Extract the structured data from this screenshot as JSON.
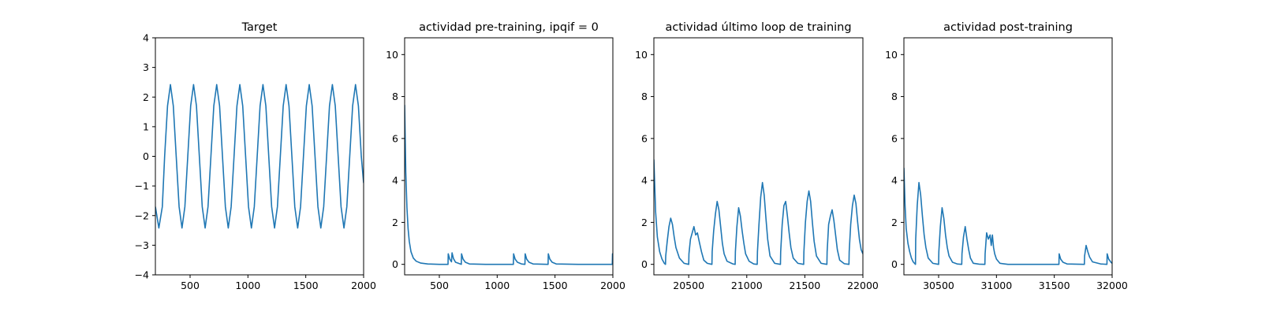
{
  "colors": {
    "series": "#1f77b4",
    "axes": "#000000",
    "background": "#ffffff"
  },
  "chart_data": [
    {
      "type": "line",
      "title": "Target",
      "xlabel": "",
      "ylabel": "",
      "xlim": [
        200,
        2000
      ],
      "ylim": [
        -4,
        4
      ],
      "xticks": [
        500,
        1000,
        1500,
        2000
      ],
      "yticks": [
        -4,
        -3,
        -2,
        -1,
        0,
        1,
        2,
        3,
        4
      ],
      "grid": false,
      "series": [
        {
          "x": [
            200,
            230,
            260,
            280,
            305,
            330,
            355,
            380,
            405,
            430,
            455,
            480,
            505,
            530,
            555,
            580,
            605,
            630,
            655,
            680,
            705,
            730,
            755,
            780,
            805,
            830,
            855,
            880,
            905,
            930,
            955,
            980,
            1005,
            1030,
            1055,
            1080,
            1105,
            1130,
            1155,
            1180,
            1205,
            1230,
            1255,
            1280,
            1305,
            1330,
            1355,
            1380,
            1405,
            1430,
            1455,
            1480,
            1505,
            1530,
            1555,
            1580,
            1605,
            1630,
            1655,
            1680,
            1705,
            1730,
            1755,
            1780,
            1805,
            1830,
            1855,
            1880,
            1905,
            1930,
            1955,
            1980,
            2000
          ],
          "y": [
            -1.7,
            -2.42,
            -1.7,
            0.0,
            1.7,
            2.42,
            1.7,
            0.0,
            -1.7,
            -2.42,
            -1.7,
            0.0,
            1.7,
            2.42,
            1.7,
            0.0,
            -1.7,
            -2.42,
            -1.7,
            0.0,
            1.7,
            2.42,
            1.7,
            0.0,
            -1.7,
            -2.42,
            -1.7,
            0.0,
            1.7,
            2.42,
            1.7,
            0.0,
            -1.7,
            -2.42,
            -1.7,
            0.0,
            1.7,
            2.42,
            1.7,
            0.0,
            -1.7,
            -2.42,
            -1.7,
            0.0,
            1.7,
            2.42,
            1.7,
            0.0,
            -1.7,
            -2.42,
            -1.7,
            0.0,
            1.7,
            2.42,
            1.7,
            0.0,
            -1.7,
            -2.42,
            -1.7,
            0.0,
            1.7,
            2.42,
            1.7,
            0.0,
            -1.7,
            -2.42,
            -1.7,
            0.0,
            1.7,
            2.42,
            1.7,
            0.0,
            -0.9
          ]
        }
      ]
    },
    {
      "type": "line",
      "title": "actividad pre-training, ipqif = 0",
      "xlabel": "",
      "ylabel": "",
      "xlim": [
        200,
        2000
      ],
      "ylim": [
        -0.5,
        10.8
      ],
      "xticks": [
        500,
        1000,
        1500,
        2000
      ],
      "yticks": [
        0,
        2,
        4,
        6,
        8,
        10
      ],
      "grid": false,
      "series": [
        {
          "x": [
            200,
            210,
            220,
            230,
            240,
            255,
            275,
            300,
            340,
            400,
            500,
            575,
            577,
            590,
            605,
            610,
            622,
            640,
            690,
            692,
            705,
            725,
            760,
            900,
            1140,
            1142,
            1155,
            1175,
            1210,
            1240,
            1242,
            1255,
            1275,
            1310,
            1440,
            1442,
            1455,
            1475,
            1510,
            1700,
            1995,
            1997,
            2000
          ],
          "y": [
            7.6,
            4.4,
            2.7,
            1.7,
            1.1,
            0.6,
            0.3,
            0.15,
            0.06,
            0.02,
            0.0,
            0.0,
            0.5,
            0.25,
            0.12,
            0.55,
            0.28,
            0.1,
            0.0,
            0.5,
            0.25,
            0.1,
            0.02,
            0.0,
            0.0,
            0.5,
            0.25,
            0.1,
            0.02,
            0.0,
            0.5,
            0.25,
            0.1,
            0.02,
            0.0,
            0.5,
            0.25,
            0.1,
            0.02,
            0.0,
            0.0,
            0.5,
            0.5
          ]
        }
      ]
    },
    {
      "type": "line",
      "title": "actividad último loop de training",
      "xlabel": "",
      "ylabel": "",
      "xlim": [
        20200,
        22000
      ],
      "ylim": [
        -0.5,
        10.8
      ],
      "xticks": [
        20500,
        21000,
        21500,
        22000
      ],
      "yticks": [
        0,
        2,
        4,
        6,
        8,
        10
      ],
      "grid": false,
      "series": [
        {
          "x": [
            20200,
            20215,
            20230,
            20250,
            20270,
            20290,
            20300,
            20302,
            20315,
            20330,
            20345,
            20360,
            20375,
            20390,
            20420,
            20460,
            20500,
            20502,
            20515,
            20530,
            20545,
            20560,
            20575,
            20590,
            20610,
            20630,
            20660,
            20700,
            20702,
            20715,
            20730,
            20745,
            20760,
            20775,
            20790,
            20805,
            20830,
            20880,
            20900,
            20902,
            20915,
            20930,
            20945,
            20960,
            20975,
            20990,
            21020,
            21060,
            21090,
            21092,
            21105,
            21120,
            21135,
            21150,
            21165,
            21180,
            21200,
            21240,
            21290,
            21292,
            21305,
            21320,
            21335,
            21350,
            21365,
            21380,
            21400,
            21440,
            21490,
            21492,
            21505,
            21520,
            21535,
            21550,
            21565,
            21580,
            21600,
            21640,
            21690,
            21692,
            21705,
            21720,
            21735,
            21750,
            21765,
            21780,
            21800,
            21840,
            21880,
            21882,
            21895,
            21910,
            21925,
            21940,
            21955,
            21970,
            21985,
            22000
          ],
          "y": [
            5.0,
            2.5,
            1.3,
            0.6,
            0.25,
            0.05,
            0.0,
            0.4,
            1.1,
            1.8,
            2.2,
            1.9,
            1.3,
            0.8,
            0.3,
            0.05,
            0.0,
            0.5,
            1.2,
            1.5,
            1.8,
            1.4,
            1.5,
            1.1,
            0.6,
            0.2,
            0.05,
            0.0,
            0.6,
            1.6,
            2.4,
            3.0,
            2.6,
            1.8,
            1.0,
            0.5,
            0.15,
            0.02,
            0.0,
            0.6,
            1.8,
            2.7,
            2.3,
            1.6,
            1.0,
            0.5,
            0.15,
            0.02,
            0.0,
            0.6,
            1.9,
            3.2,
            3.9,
            3.3,
            2.2,
            1.2,
            0.4,
            0.05,
            0.0,
            0.6,
            1.9,
            2.8,
            3.0,
            2.3,
            1.5,
            0.8,
            0.3,
            0.05,
            0.0,
            0.6,
            2.0,
            3.0,
            3.5,
            3.0,
            2.0,
            1.1,
            0.4,
            0.05,
            0.0,
            0.6,
            1.9,
            2.3,
            2.6,
            2.1,
            1.4,
            0.7,
            0.2,
            0.03,
            0.0,
            0.6,
            1.9,
            2.8,
            3.3,
            2.9,
            2.0,
            1.2,
            0.7,
            0.5
          ]
        }
      ]
    },
    {
      "type": "line",
      "title": "actividad post-training",
      "xlabel": "",
      "ylabel": "",
      "xlim": [
        30200,
        32000
      ],
      "ylim": [
        -0.5,
        10.8
      ],
      "xticks": [
        30500,
        31000,
        31500,
        32000
      ],
      "yticks": [
        0,
        2,
        4,
        6,
        8,
        10
      ],
      "grid": false,
      "series": [
        {
          "x": [
            30200,
            30210,
            30220,
            30235,
            30250,
            30265,
            30280,
            30300,
            30302,
            30315,
            30330,
            30345,
            30360,
            30375,
            30390,
            30410,
            30450,
            30500,
            30502,
            30515,
            30530,
            30545,
            30560,
            30575,
            30590,
            30620,
            30660,
            30700,
            30702,
            30715,
            30730,
            30745,
            30760,
            30775,
            30800,
            30850,
            30900,
            30902,
            30915,
            30930,
            30945,
            30955,
            30965,
            30975,
            30985,
            31000,
            31030,
            31100,
            31300,
            31540,
            31542,
            31555,
            31575,
            31610,
            31760,
            31762,
            31775,
            31790,
            31805,
            31830,
            31900,
            31955,
            31957,
            31970,
            31990,
            32000
          ],
          "y": [
            4.6,
            2.8,
            1.7,
            1.0,
            0.6,
            0.3,
            0.12,
            0.0,
            1.2,
            2.8,
            3.9,
            3.3,
            2.3,
            1.4,
            0.8,
            0.3,
            0.05,
            0.0,
            0.6,
            1.8,
            2.7,
            2.2,
            1.4,
            0.8,
            0.4,
            0.1,
            0.02,
            0.0,
            0.5,
            1.3,
            1.8,
            1.2,
            0.7,
            0.3,
            0.05,
            0.01,
            0.0,
            0.5,
            1.5,
            1.2,
            1.4,
            0.9,
            1.4,
            0.8,
            0.5,
            0.25,
            0.05,
            0.0,
            0.0,
            0.0,
            0.5,
            0.25,
            0.1,
            0.02,
            0.0,
            0.4,
            0.9,
            0.6,
            0.35,
            0.12,
            0.02,
            0.0,
            0.5,
            0.25,
            0.1,
            0.05
          ]
        }
      ]
    }
  ]
}
